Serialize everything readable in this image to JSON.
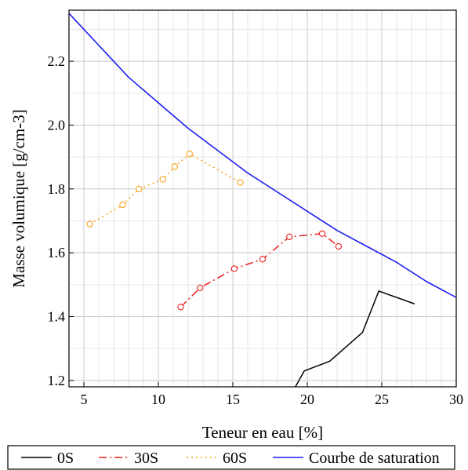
{
  "chart_data": {
    "type": "line",
    "xlabel": "Teneur en eau [%]",
    "ylabel": "Masse volumique [g/cm-3]",
    "xlim": [
      4,
      30
    ],
    "ylim": [
      1.18,
      2.36
    ],
    "x_ticks": [
      "5",
      "10",
      "15",
      "20",
      "25",
      "30"
    ],
    "y_ticks": [
      "1.2",
      "1.4",
      "1.6",
      "1.8",
      "2.0",
      "2.2"
    ],
    "grid": true,
    "legend_position": "bottom",
    "series": [
      {
        "name": "0S",
        "color": "#000000",
        "dash": "solid",
        "marker": "none",
        "x": [
          19.2,
          19.8,
          21.5,
          23.7,
          24.8,
          27.2
        ],
        "y": [
          1.18,
          1.23,
          1.26,
          1.35,
          1.48,
          1.44
        ]
      },
      {
        "name": "30S",
        "color": "#e8201c",
        "dash": "dashdot",
        "marker": "circle",
        "x": [
          11.5,
          12.8,
          15.1,
          17.0,
          18.8,
          21.0,
          22.1
        ],
        "y": [
          1.43,
          1.49,
          1.55,
          1.58,
          1.65,
          1.66,
          1.62
        ]
      },
      {
        "name": "60S",
        "color": "#f5a21b",
        "dash": "dotted",
        "marker": "circle",
        "x": [
          5.4,
          7.6,
          8.7,
          10.3,
          11.1,
          12.1,
          15.5
        ],
        "y": [
          1.69,
          1.75,
          1.8,
          1.83,
          1.87,
          1.91,
          1.82
        ]
      },
      {
        "name": "Courbe de saturation",
        "color": "#1d1df2",
        "dash": "solid",
        "marker": "none",
        "x": [
          4,
          5,
          6,
          8,
          10,
          12,
          14,
          16,
          18,
          20,
          22,
          24,
          26,
          28,
          30
        ],
        "y": [
          2.35,
          2.3,
          2.25,
          2.15,
          2.07,
          1.99,
          1.92,
          1.85,
          1.79,
          1.73,
          1.67,
          1.62,
          1.57,
          1.51,
          1.46
        ]
      }
    ]
  }
}
